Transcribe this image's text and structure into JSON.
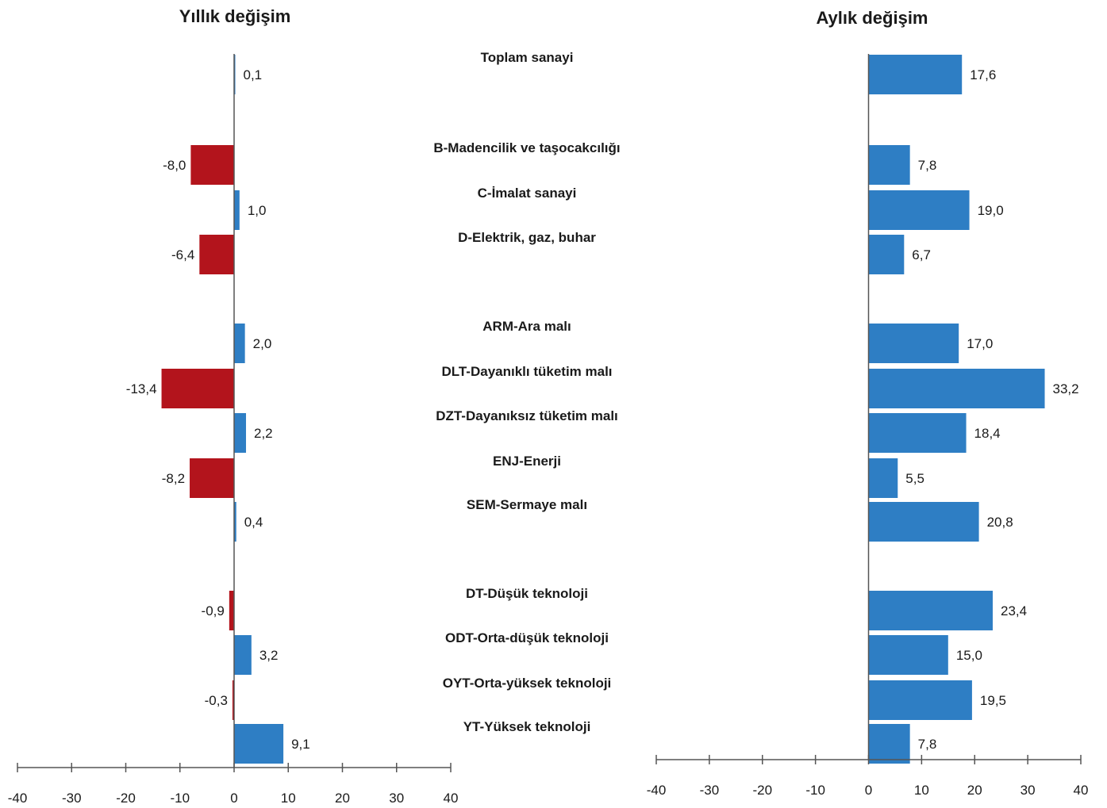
{
  "chart_data": {
    "type": "bar",
    "orientation": "horizontal",
    "categories": [
      "Toplam sanayi",
      "B-Madencilik ve taşocakcılığı",
      "C-İmalat sanayi",
      "D-Elektrik, gaz, buhar",
      "ARM-Ara malı",
      "DLT-Dayanıklı tüketim malı",
      "DZT-Dayanıksız tüketim malı",
      "ENJ-Enerji",
      "SEM-Sermaye malı",
      "DT-Düşük teknoloji",
      "ODT-Orta-düşük teknoloji",
      "OYT-Orta-yüksek teknoloji",
      "YT-Yüksek teknoloji"
    ],
    "series": [
      {
        "name": "Yıllık değişim",
        "values": [
          0.1,
          -8.0,
          1.0,
          -6.4,
          2.0,
          -13.4,
          2.2,
          -8.2,
          0.4,
          -0.9,
          3.2,
          -0.3,
          9.1
        ],
        "labels": [
          "0,1",
          "-8,0",
          "1,0",
          "-6,4",
          "2,0",
          "-13,4",
          "2,2",
          "-8,2",
          "0,4",
          "-0,9",
          "3,2",
          "-0,3",
          "9,1"
        ]
      },
      {
        "name": "Aylık değişim",
        "values": [
          17.6,
          7.8,
          19.0,
          6.7,
          17.0,
          33.2,
          18.4,
          5.5,
          20.8,
          23.4,
          15.0,
          19.5,
          7.8
        ],
        "labels": [
          "17,6",
          "7,8",
          "19,0",
          "6,7",
          "17,0",
          "33,2",
          "18,4",
          "5,5",
          "20,8",
          "23,4",
          "15,0",
          "19,5",
          "7,8"
        ]
      }
    ],
    "xlim": [
      -40,
      40
    ],
    "ticks": [
      -40,
      -30,
      -20,
      -10,
      0,
      10,
      20,
      30,
      40
    ],
    "colors": {
      "positive": "#2e7ec4",
      "negative": "#b3141c",
      "axis": "#555555"
    },
    "grid": false,
    "legend": "none"
  }
}
